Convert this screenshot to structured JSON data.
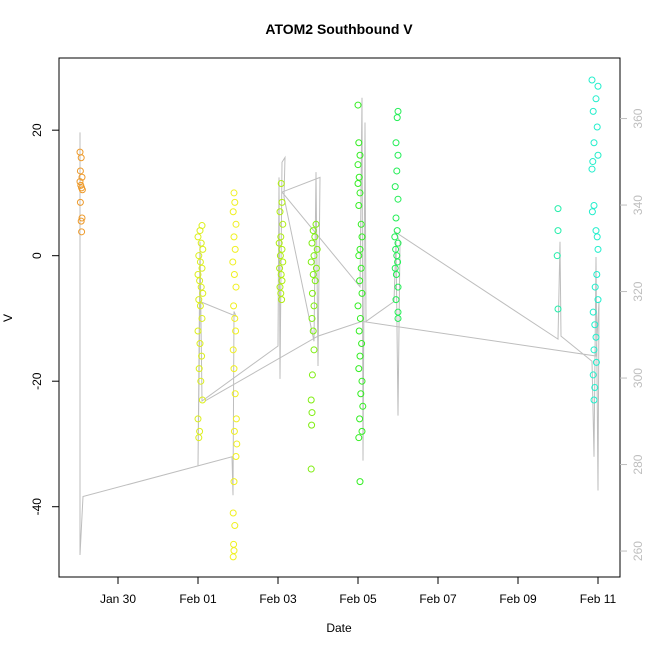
{
  "chart_data": {
    "type": "scatter",
    "title": "ATOM2 Southbound V",
    "x_label": "Date",
    "y_label": "V",
    "xlim": [
      28.525,
      42.55
    ],
    "ylim": [
      -51.2,
      31.5
    ],
    "y2lim": [
      254,
      374
    ],
    "xticks": [
      {
        "value": 30,
        "label": "Jan 30"
      },
      {
        "value": 32,
        "label": "Feb 01"
      },
      {
        "value": 34,
        "label": "Feb 03"
      },
      {
        "value": 36,
        "label": "Feb 05"
      },
      {
        "value": 38,
        "label": "Feb 07"
      },
      {
        "value": 40,
        "label": "Feb 09"
      },
      {
        "value": 42,
        "label": "Feb 11"
      }
    ],
    "yticks": [
      -40,
      -20,
      0,
      20
    ],
    "y2ticks": [
      260,
      280,
      300,
      320,
      340,
      360
    ],
    "series": [
      {
        "color": "#bebebe",
        "axis": "y2",
        "line": true,
        "x": [
          29.05,
          29.05,
          29.125,
          32.85,
          32.875,
          32.9,
          32.95,
          32.05,
          32.0,
          32.05,
          32.1,
          34.0,
          34.025,
          34.05,
          34.1,
          34.175,
          34.15,
          34.9,
          34.95,
          35.0,
          35.05,
          34.1,
          36.05,
          36.1,
          36.125,
          36.175,
          36.2,
          36.9,
          36.95,
          37.0,
          37.05,
          36.925,
          41.0,
          41.05,
          41.075,
          41.85,
          41.9,
          41.95,
          42.0,
          42.025,
          41.95,
          36.1,
          35.0,
          32.175
        ],
        "values": [
          356.8,
          259.1,
          272.6,
          281.8,
          272.9,
          315.4,
          314.3,
          317.7,
          279.8,
          331.5,
          294.7,
          307.4,
          346.4,
          299.8,
          349.9,
          351.0,
          341.8,
          308.5,
          347.6,
          302.8,
          346.4,
          343.0,
          321.1,
          364.8,
          280.9,
          359.1,
          313.1,
          317.7,
          331.5,
          291.3,
          331.5,
          333.8,
          309.0,
          331.5,
          309.7,
          303.9,
          281.8,
          328.0,
          274.0,
          317.7,
          305.1,
          313.1,
          309.7,
          294.7
        ]
      },
      {
        "color": "#ee9a2a",
        "x": [
          29.05,
          29.08,
          29.06,
          29.1,
          29.05,
          29.07,
          29.09,
          29.11,
          29.06,
          29.1,
          29.08,
          29.09
        ],
        "values": [
          16.5,
          15.6,
          13.5,
          12.5,
          11.8,
          11.2,
          10.8,
          10.5,
          8.5,
          6,
          5.5,
          3.8
        ]
      },
      {
        "color": "#dcef1c",
        "x": [
          32.1,
          32.05,
          32.0,
          32.08,
          32.12,
          32.02,
          32.06,
          32.1,
          32.0,
          32.04,
          32.08,
          32.12,
          32.02,
          32.06,
          32.1,
          32.0,
          32.05,
          32.09,
          32.03,
          32.07,
          32.11,
          32.0,
          32.04,
          32.02
        ],
        "values": [
          4.8,
          4,
          3,
          2,
          1,
          0,
          -1,
          -2,
          -3,
          -4,
          -5,
          -6,
          -7,
          -8,
          -10,
          -12,
          -14,
          -16,
          -18,
          -20,
          -23,
          -26,
          -28,
          -29
        ]
      },
      {
        "color": "#f0f020",
        "x": [
          32.9,
          32.92,
          32.88,
          32.95,
          32.9,
          32.93,
          32.87,
          32.91,
          32.95,
          32.89,
          32.92,
          32.94,
          32.88,
          32.9,
          32.93,
          32.96,
          32.91,
          32.97,
          32.95,
          32.9,
          32.88,
          32.92,
          32.89,
          32.9,
          32.88
        ],
        "values": [
          10,
          8.5,
          7,
          5,
          3,
          1,
          -1,
          -3,
          -5,
          -8,
          -10,
          -12,
          -15,
          -18,
          -22,
          -26,
          -28,
          -30,
          -32,
          -36,
          -41,
          -43,
          -46,
          -47,
          -48
        ]
      },
      {
        "color": "#b0ee10",
        "x": [
          34.08,
          34.1,
          34.05,
          34.12,
          34.07,
          34.03,
          34.1,
          34.06,
          34.12,
          34.04,
          34.08,
          34.1,
          34.05,
          34.07,
          34.09
        ],
        "values": [
          11.5,
          8.5,
          7,
          5,
          3,
          2,
          1,
          0,
          -1,
          -2,
          -3,
          -4,
          -5,
          -6,
          -7
        ]
      },
      {
        "color": "#7fee10",
        "x": [
          34.95,
          34.88,
          34.92,
          34.85,
          34.98,
          34.9,
          34.83,
          34.96,
          34.88,
          34.93,
          34.86,
          34.9,
          34.85,
          34.88,
          34.9,
          34.86,
          34.83,
          34.85,
          34.84,
          34.83
        ],
        "values": [
          5,
          4,
          3,
          2,
          1,
          0,
          -1,
          -2,
          -3,
          -4,
          -6,
          -8,
          -10,
          -12,
          -15,
          -19,
          -23,
          -25,
          -27,
          -34
        ]
      },
      {
        "color": "#33ee22",
        "x": [
          36.0,
          36.02,
          36.05,
          36.0,
          36.03,
          36.0,
          36.05,
          36.02,
          36.08,
          36.1,
          36.05,
          36.02,
          36.08,
          36.04,
          36.1,
          36.0,
          36.06,
          36.03,
          36.09,
          36.05,
          36.02,
          36.1,
          36.07,
          36.12,
          36.04,
          36.1,
          36.02,
          36.05
        ],
        "values": [
          24,
          18,
          16,
          14.5,
          12.5,
          11.5,
          10,
          8,
          5,
          3,
          1,
          0,
          -2,
          -4,
          -6,
          -8,
          -10,
          -12,
          -14,
          -16,
          -18,
          -20,
          -22,
          -24,
          -26,
          -28,
          -29,
          -36
        ]
      },
      {
        "color": "#22ee55",
        "x": [
          37.0,
          36.98,
          36.95,
          37.0,
          36.97,
          36.93,
          37.0,
          36.95,
          36.98,
          36.92,
          37.0,
          36.94,
          36.97,
          36.99,
          36.93,
          36.96,
          37.0,
          36.95,
          37.0,
          37.0
        ],
        "values": [
          23,
          22,
          18,
          16,
          13.5,
          11,
          9,
          6,
          4,
          3,
          2,
          1,
          0,
          -1,
          -2,
          -3,
          -5,
          -7,
          -9,
          -10
        ]
      },
      {
        "color": "#22eeaa",
        "x": [
          41.0,
          41.0,
          40.98,
          41.0
        ],
        "values": [
          7.5,
          4,
          0,
          -8.5
        ]
      },
      {
        "color": "#22eecc",
        "x": [
          41.85,
          42.0,
          41.95,
          41.88,
          41.98,
          41.9,
          42.0,
          41.87,
          41.85,
          41.9,
          41.86,
          41.95,
          41.98,
          42.0,
          41.97,
          41.93,
          42.0,
          41.88,
          41.92,
          41.95,
          41.9,
          41.96,
          41.88,
          41.92,
          41.9
        ],
        "values": [
          28,
          27,
          25,
          23,
          20.5,
          18,
          16,
          15,
          13.8,
          8,
          7,
          4,
          3,
          1,
          -3,
          -5,
          -7,
          -9,
          -11,
          -13,
          -15,
          -17,
          -19,
          -21,
          -23
        ]
      }
    ]
  }
}
